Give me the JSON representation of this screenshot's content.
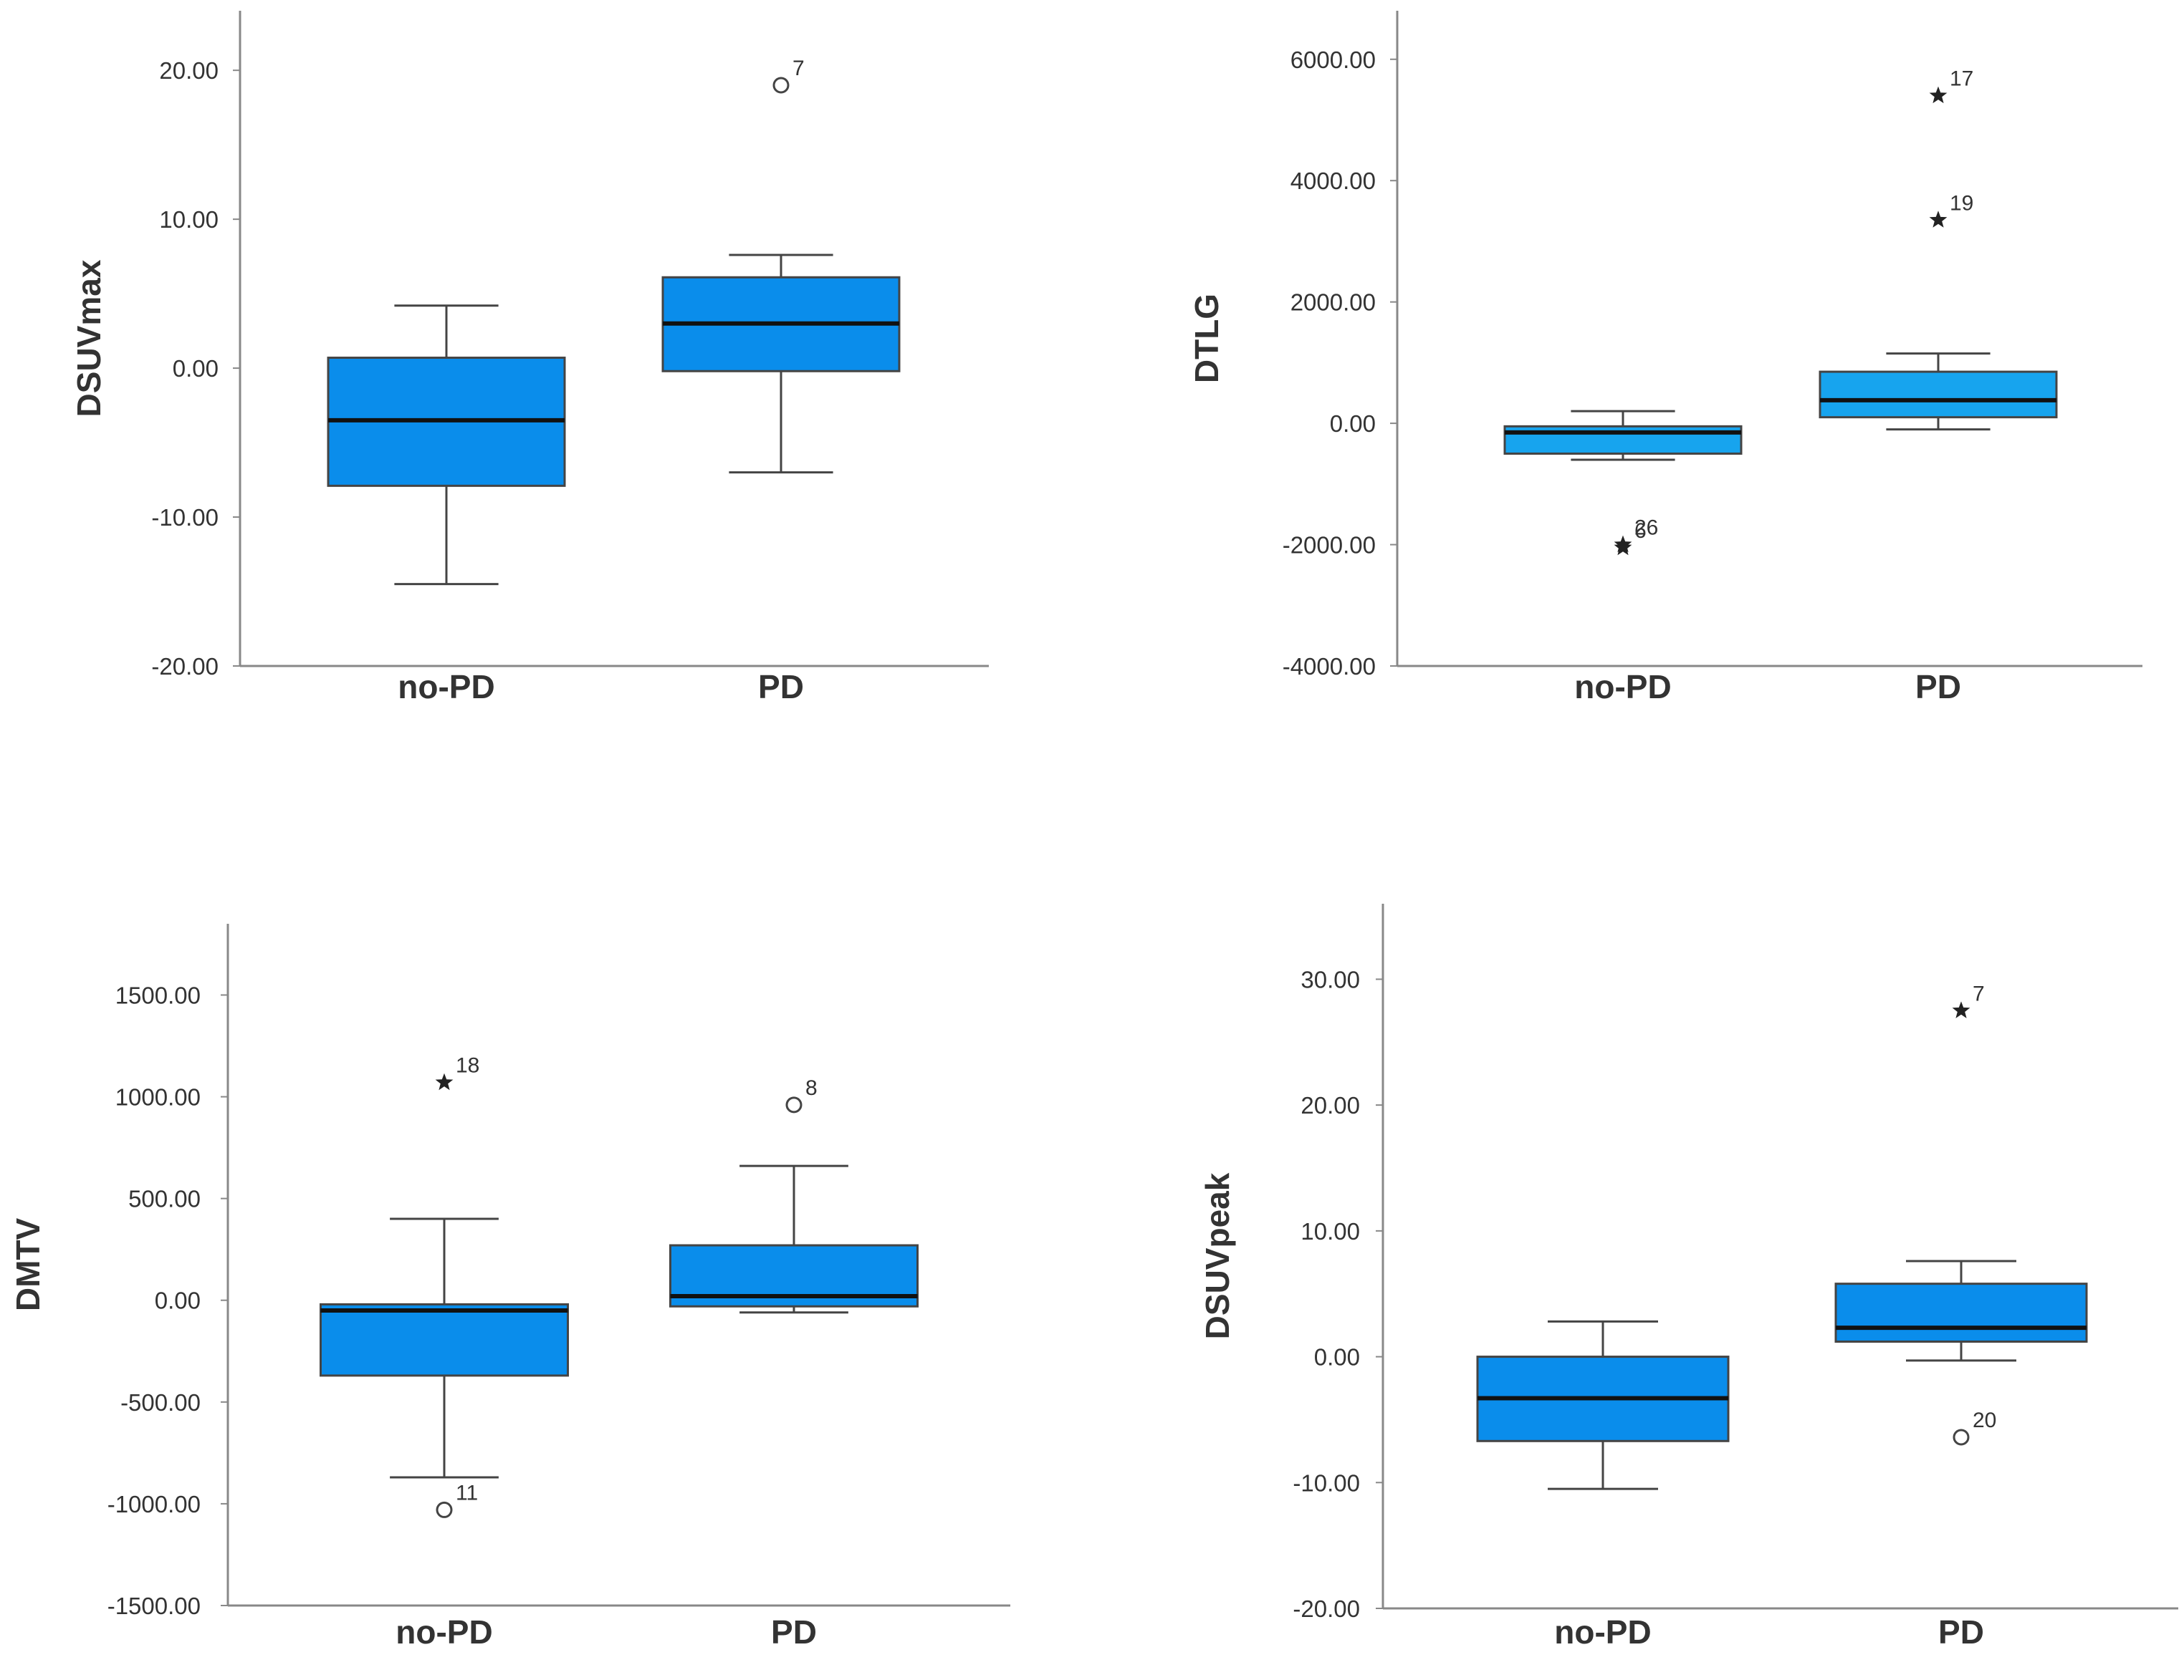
{
  "colors": {
    "box_fill": "#0A8DEB",
    "box_fill_light": "#17A4EE",
    "line": "#444444",
    "text": "#333333",
    "axis": "#888888"
  },
  "chart_data": [
    {
      "type": "boxplot",
      "ylabel": "DSUVmax",
      "categories": [
        "no-PD",
        "PD"
      ],
      "ylim": [
        -20,
        24
      ],
      "yticks": [
        -20,
        -10,
        0,
        10,
        20
      ],
      "ytick_labels": [
        "-20.00",
        "-10.00",
        "0.00",
        "10.00",
        "20.00"
      ],
      "series": [
        {
          "name": "no-PD",
          "whisker_low": -14.5,
          "q1": -7.9,
          "median": -3.5,
          "q3": 0.7,
          "whisker_high": 4.2,
          "outliers": []
        },
        {
          "name": "PD",
          "whisker_low": -7.0,
          "q1": -0.2,
          "median": 3.0,
          "q3": 6.1,
          "whisker_high": 7.6,
          "outliers": [
            {
              "value": 19.0,
              "label": "7",
              "marker": "circle"
            }
          ]
        }
      ]
    },
    {
      "type": "boxplot",
      "ylabel": "DTLG",
      "categories": [
        "no-PD",
        "PD"
      ],
      "ylim": [
        -4000,
        6800
      ],
      "yticks": [
        -4000,
        -2000,
        0,
        2000,
        4000,
        6000
      ],
      "ytick_labels": [
        "-4000.00",
        "-2000.00",
        "0.00",
        "2000.00",
        "4000.00",
        "6000.00"
      ],
      "series": [
        {
          "name": "no-PD",
          "whisker_low": -600,
          "q1": -500,
          "median": -150,
          "q3": -50,
          "whisker_high": 200,
          "outliers": [
            {
              "value": -2000,
              "label": "26",
              "marker": "star"
            },
            {
              "value": -2050,
              "label": "6",
              "marker": "star"
            }
          ]
        },
        {
          "name": "PD",
          "whisker_low": -100,
          "q1": 100,
          "median": 380,
          "q3": 850,
          "whisker_high": 1150,
          "outliers": [
            {
              "value": 5400,
              "label": "17",
              "marker": "star"
            },
            {
              "value": 3350,
              "label": "19",
              "marker": "star"
            }
          ]
        }
      ]
    },
    {
      "type": "boxplot",
      "ylabel": "DMTV",
      "categories": [
        "no-PD",
        "PD"
      ],
      "ylim": [
        -1500,
        1850
      ],
      "yticks": [
        -1500,
        -1000,
        -500,
        0,
        500,
        1000,
        1500
      ],
      "ytick_labels": [
        "-1500.00",
        "-1000.00",
        "-500.00",
        "0.00",
        "500.00",
        "1000.00",
        "1500.00"
      ],
      "series": [
        {
          "name": "no-PD",
          "whisker_low": -870,
          "q1": -370,
          "median": -50,
          "q3": -20,
          "whisker_high": 400,
          "outliers": [
            {
              "value": 1070,
              "label": "18",
              "marker": "star"
            },
            {
              "value": -1030,
              "label": "11",
              "marker": "circle"
            }
          ]
        },
        {
          "name": "PD",
          "whisker_low": -60,
          "q1": -30,
          "median": 20,
          "q3": 270,
          "whisker_high": 660,
          "outliers": [
            {
              "value": 960,
              "label": "8",
              "marker": "circle"
            }
          ]
        }
      ]
    },
    {
      "type": "boxplot",
      "ylabel": "DSUVpeak",
      "categories": [
        "no-PD",
        "PD"
      ],
      "ylim": [
        -20,
        36
      ],
      "yticks": [
        -20,
        -10,
        0,
        10,
        20,
        30
      ],
      "ytick_labels": [
        "-20.00",
        "-10.00",
        "0.00",
        "10.00",
        "20.00",
        "30.00"
      ],
      "series": [
        {
          "name": "no-PD",
          "whisker_low": -10.5,
          "q1": -6.7,
          "median": -3.3,
          "q3": 0.0,
          "whisker_high": 2.8,
          "outliers": []
        },
        {
          "name": "PD",
          "whisker_low": -0.3,
          "q1": 1.2,
          "median": 2.3,
          "q3": 5.8,
          "whisker_high": 7.6,
          "outliers": [
            {
              "value": 27.5,
              "label": "7",
              "marker": "star"
            },
            {
              "value": -6.4,
              "label": "20",
              "marker": "circle"
            }
          ]
        }
      ]
    }
  ]
}
